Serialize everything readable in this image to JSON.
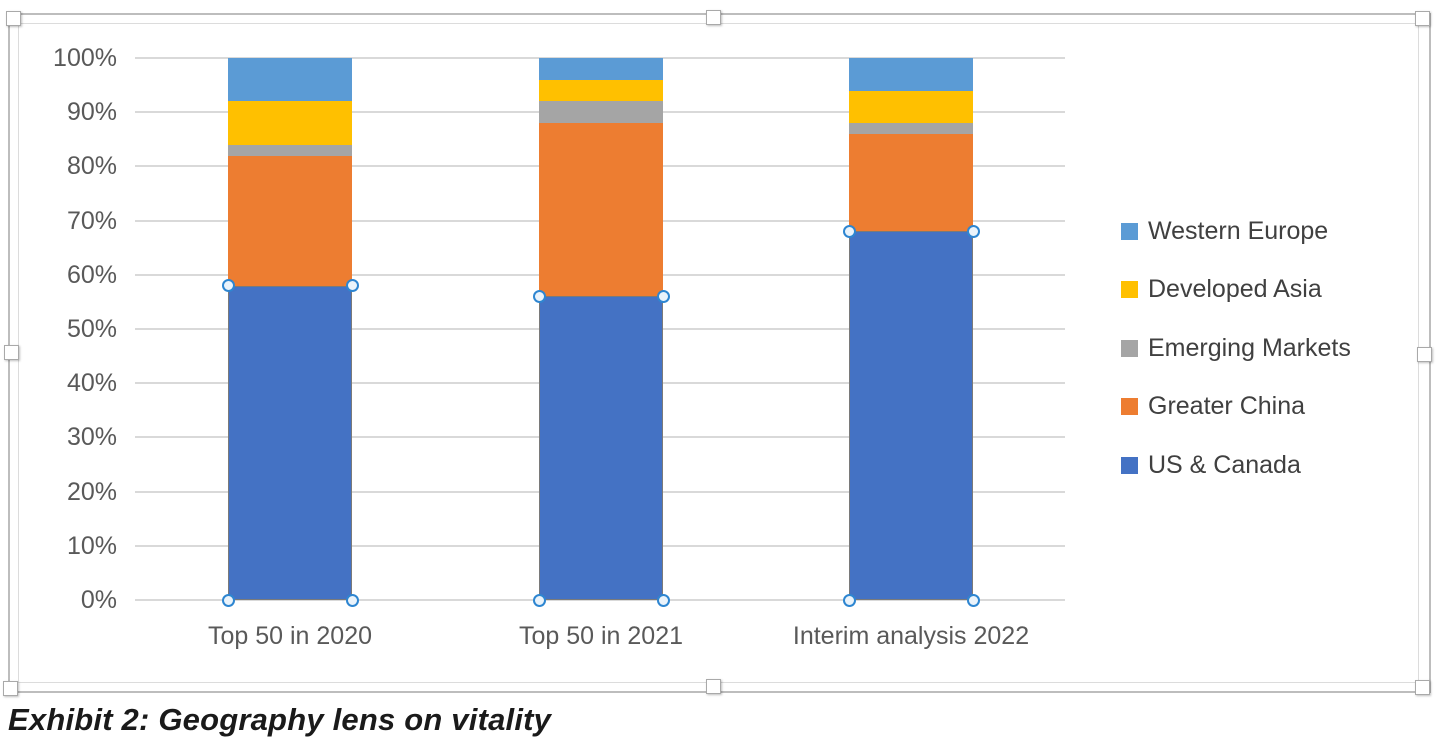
{
  "caption": "Exhibit 2: Geography lens on vitality",
  "chart_data": {
    "type": "bar",
    "variant": "100-percent-stacked-column",
    "title": "",
    "categories": [
      "Top 50 in 2020",
      "Top 50 in 2021",
      "Interim analysis 2022"
    ],
    "series": [
      {
        "name": "US & Canada",
        "color": "#4472C4",
        "values": [
          58,
          56,
          68
        ]
      },
      {
        "name": "Greater China",
        "color": "#ED7D31",
        "values": [
          24,
          32,
          18
        ]
      },
      {
        "name": "Emerging Markets",
        "color": "#A5A5A5",
        "values": [
          2,
          4,
          2
        ]
      },
      {
        "name": "Developed Asia",
        "color": "#FFC000",
        "values": [
          8,
          4,
          6
        ]
      },
      {
        "name": "Western Europe",
        "color": "#5B9BD5",
        "values": [
          8,
          4,
          6
        ]
      }
    ],
    "y_axis": {
      "min": 0,
      "max": 100,
      "tick_step": 10,
      "ticks": [
        "0%",
        "10%",
        "20%",
        "30%",
        "40%",
        "50%",
        "60%",
        "70%",
        "80%",
        "90%",
        "100%"
      ]
    },
    "grid": true,
    "legend": {
      "position": "right",
      "order_top_to_bottom": [
        "Western Europe",
        "Developed Asia",
        "Emerging Markets",
        "Greater China",
        "US & Canada"
      ]
    },
    "selection": {
      "chart_selected": true,
      "selected_series": "US & Canada"
    },
    "colors": {
      "gridline": "#d9d9d9",
      "axis_text": "#595959",
      "legend_text": "#404040",
      "point_handle_ring": "#2e86d1",
      "point_handle_fill": "#eaf3fb"
    }
  }
}
